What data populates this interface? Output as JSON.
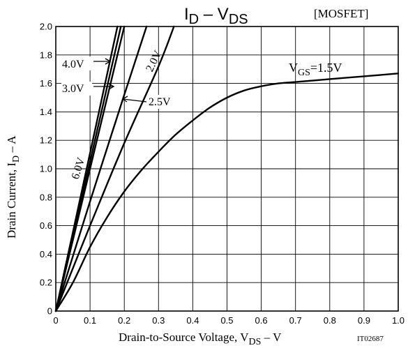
{
  "chart_data": {
    "type": "line",
    "title_main": "I",
    "title_sub1": "D",
    "title_mid": " – V",
    "title_sub2": "DS",
    "tag": "[MOSFET]",
    "xlabel_main": "Drain-to-Source Voltage, V",
    "xlabel_sub": "DS",
    "xlabel_unit": " –  V",
    "ylabel_main": "Drain Current, I",
    "ylabel_sub": "D",
    "ylabel_unit": " –  A",
    "figure_id": "IT02687",
    "xlim": [
      0,
      1.0
    ],
    "ylim": [
      0,
      2.0
    ],
    "grid": true,
    "x_ticks": [
      "0",
      "0.1",
      "0.2",
      "0.3",
      "0.4",
      "0.5",
      "0.6",
      "0.7",
      "0.8",
      "0.9",
      "1.0"
    ],
    "y_ticks": [
      "0",
      "0.2",
      "0.4",
      "0.6",
      "0.8",
      "1.0",
      "1.2",
      "1.4",
      "1.6",
      "1.8",
      "2.0"
    ],
    "series": [
      {
        "name": "6.0V",
        "x": [
          0,
          0.1,
          0.18
        ],
        "y": [
          0,
          1.11,
          2.0
        ]
      },
      {
        "name": "4.0V",
        "x": [
          0,
          0.1,
          0.19
        ],
        "y": [
          0,
          1.05,
          2.0
        ]
      },
      {
        "name": "3.0V",
        "x": [
          0,
          0.1,
          0.2
        ],
        "y": [
          0,
          1.0,
          2.0
        ]
      },
      {
        "name": "2.5V",
        "x": [
          0,
          0.1,
          0.2,
          0.265
        ],
        "y": [
          0,
          0.77,
          1.52,
          2.0
        ]
      },
      {
        "name": "2.0V",
        "x": [
          0,
          0.1,
          0.2,
          0.3,
          0.345
        ],
        "y": [
          0,
          0.6,
          1.18,
          1.72,
          2.0
        ]
      },
      {
        "name": "1.5V",
        "x": [
          0,
          0.05,
          0.1,
          0.15,
          0.2,
          0.25,
          0.3,
          0.35,
          0.4,
          0.45,
          0.5,
          0.55,
          0.6,
          0.65,
          0.7,
          0.8,
          0.9,
          1.0
        ],
        "y": [
          0,
          0.2,
          0.45,
          0.66,
          0.84,
          0.99,
          1.12,
          1.24,
          1.34,
          1.43,
          1.5,
          1.55,
          1.58,
          1.6,
          1.61,
          1.63,
          1.65,
          1.67
        ]
      }
    ],
    "annotations": {
      "a_40": "4.0V",
      "a_30": "3.0V",
      "a_25": "2.5V",
      "a_20": "2.0V",
      "a_60": "6.0V",
      "a_15_main": "V",
      "a_15_sub": "GS",
      "a_15_val": "=1.5V"
    }
  }
}
